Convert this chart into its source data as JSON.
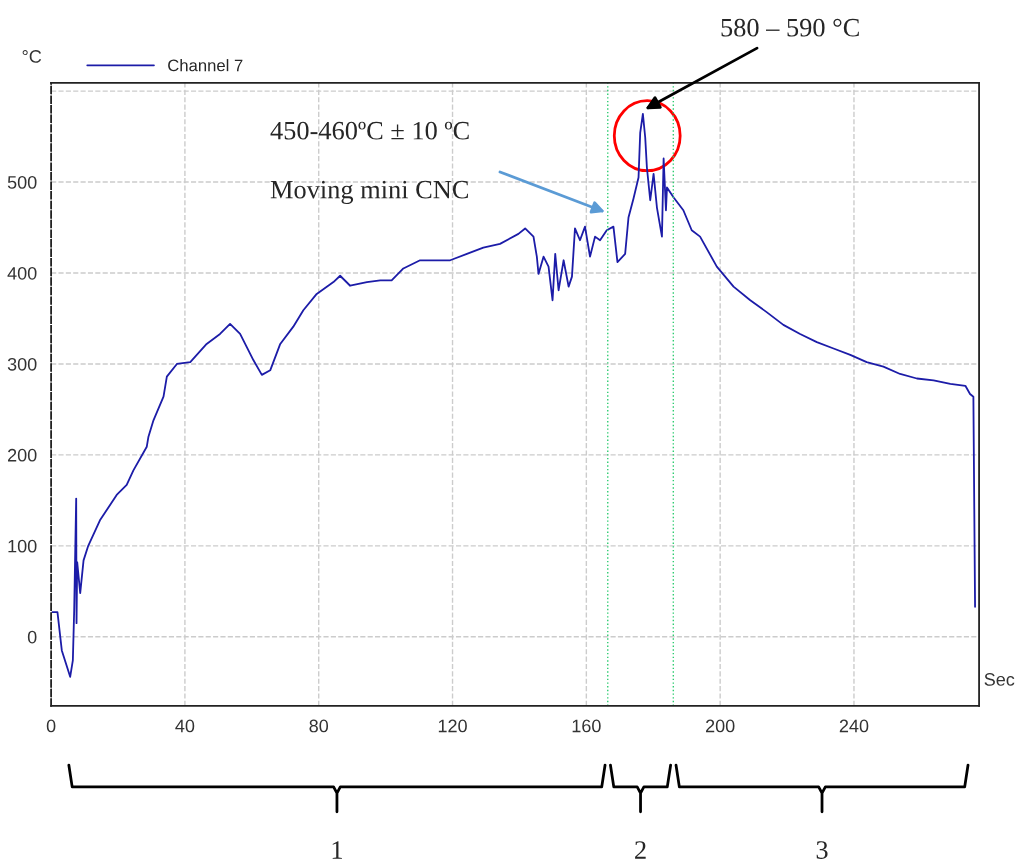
{
  "chart_data": {
    "type": "line",
    "xlabel": "Sec",
    "ylabel": "°C",
    "xlim": [
      0,
      277.4
    ],
    "ylim": [
      -76,
      609
    ],
    "xticks": [
      0,
      40,
      80,
      120,
      160,
      200,
      240
    ],
    "yticks": [
      0,
      100,
      200,
      300,
      400,
      500,
      {
        "value": 600,
        "label": null
      }
    ],
    "grid": true,
    "legend": "top left",
    "series": [
      {
        "name": "Channel 7",
        "color": "#1c1ca8",
        "x": [
          0.4,
          1.9,
          3.2,
          5.7,
          6.5,
          6.9,
          7.5,
          7.6,
          7.8,
          8.7,
          9.7,
          11.1,
          14.6,
          19.6,
          22.6,
          24.6,
          28.6,
          29.1,
          30.6,
          33.6,
          34.6,
          37.6,
          41.6,
          46.5,
          50.5,
          53.5,
          56.5,
          60.5,
          63,
          65.5,
          68.5,
          72.4,
          75.4,
          79.4,
          84.4,
          86.4,
          89.4,
          94.4,
          98.4,
          101.8,
          105.3,
          110.3,
          115.3,
          119.3,
          124.3,
          129.2,
          134.2,
          139.7,
          141.7,
          144.2,
          145.2,
          145.7,
          147.2,
          148.7,
          149.9,
          150.7,
          151.7,
          153.2,
          154.7,
          155.7,
          156.6,
          158.1,
          159.6,
          161.1,
          162.6,
          164.1,
          166.1,
          168.1,
          169.3,
          171.6,
          172.6,
          174.1,
          175.6,
          176.1,
          176.9,
          177.6,
          178.1,
          179.1,
          180.1,
          181.1,
          182.6,
          183.1,
          183.8,
          184.1,
          186.1,
          189,
          191.5,
          194,
          199,
          204,
          209,
          213.9,
          218.9,
          223.9,
          228.9,
          233.9,
          238.9,
          243.8,
          248.8,
          253.8,
          258.8,
          263.8,
          268.8,
          273.3,
          274.7,
          275.7,
          276.2
        ],
        "values": [
          27,
          27,
          -15,
          -44,
          -26,
          29,
          152,
          15,
          82,
          48,
          84,
          100,
          128,
          156,
          167,
          183,
          209,
          220,
          238,
          264,
          286,
          300,
          302,
          322,
          333,
          344,
          333,
          304,
          288,
          293,
          322,
          341,
          359,
          377,
          390,
          397,
          386,
          390,
          392,
          392,
          405,
          414,
          414,
          414,
          421,
          428,
          432,
          443,
          449,
          440,
          418,
          399,
          418,
          407,
          370,
          421,
          381,
          414,
          385,
          396,
          449,
          436,
          451,
          418,
          440,
          436,
          447,
          451,
          412,
          421,
          461,
          482,
          505,
          554,
          575,
          549,
          516,
          480,
          509,
          472,
          440,
          526,
          469,
          494,
          483,
          469,
          447,
          440,
          407,
          385,
          370,
          357,
          343,
          333,
          324,
          317,
          310,
          302,
          297,
          289,
          284,
          282,
          278,
          276,
          267,
          264,
          33
        ]
      }
    ],
    "ref_lines": [
      {
        "axis": "x",
        "value": 166.4,
        "color": "#2ecc71",
        "line_style": "dotted"
      },
      {
        "axis": "x",
        "value": 186,
        "color": "#2ecc71",
        "line_style": "dotted"
      }
    ],
    "annotations": [
      {
        "text": "580 – 590 °C",
        "x": 177.6,
        "y": 580
      },
      "450-460ºC ± 10 ºC",
      {
        "text": "Moving mini CNC",
        "x": 165.6,
        "y": 467
      },
      "1",
      "2",
      "3"
    ]
  }
}
